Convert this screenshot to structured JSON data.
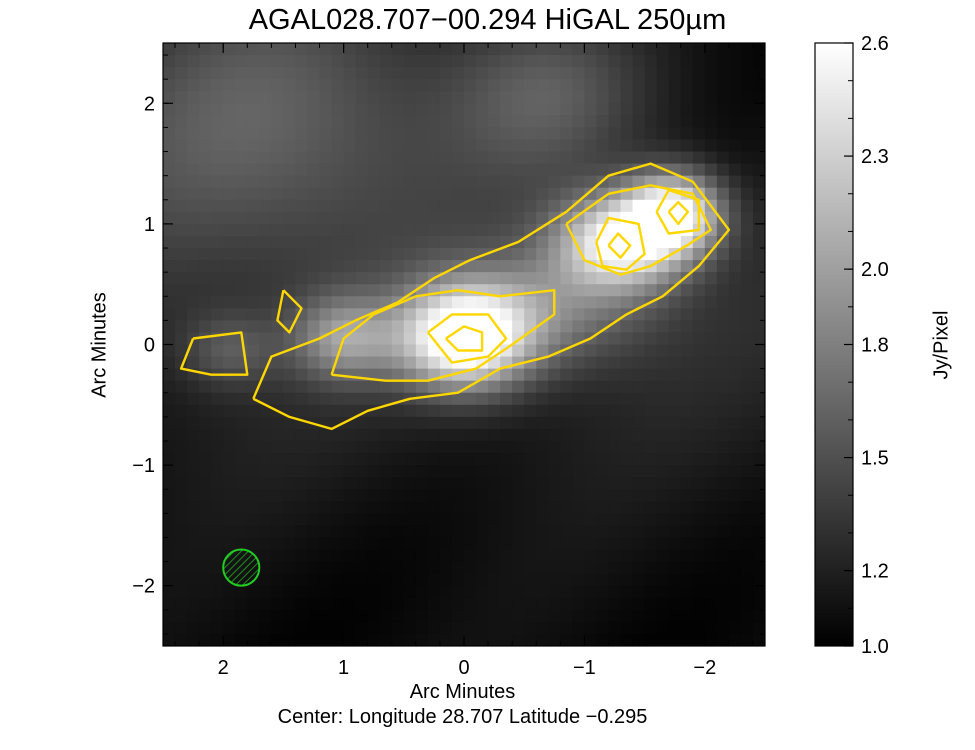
{
  "chart_data": {
    "type": "heatmap",
    "title": "AGAL028.707−00.294 HiGAL 250µm",
    "xlabel": "Arc Minutes",
    "ylabel": "Arc Minutes",
    "footer": "Center:  Longitude 28.707 Latitude −0.295",
    "x_axis": {
      "range": [
        2.5,
        -2.5
      ],
      "reversed": true,
      "ticks": [
        2,
        1,
        0,
        -1,
        -2
      ],
      "tick_labels": [
        "2",
        "1",
        "0",
        "−1",
        "−2"
      ]
    },
    "y_axis": {
      "range": [
        -2.5,
        2.5
      ],
      "ticks": [
        2,
        1,
        0,
        -1,
        -2
      ],
      "tick_labels": [
        "2",
        "1",
        "0",
        "−1",
        "−2"
      ]
    },
    "colorbar": {
      "label": "Jy/Pixel",
      "range": [
        1.0,
        2.6
      ],
      "ticks": [
        2.6,
        2.3,
        2.0,
        1.8,
        1.5,
        1.2,
        1.0
      ],
      "tick_labels": [
        "2.6",
        "2.3",
        "2.0",
        "1.8",
        "1.5",
        "1.2",
        "1.0"
      ],
      "colormap": "grayscale"
    },
    "sources": [
      {
        "x": 0.0,
        "y": 0.05,
        "peak": 2.6,
        "sigma_x": 0.38,
        "sigma_y": 0.3
      },
      {
        "x": -1.3,
        "y": 0.85,
        "peak": 2.4,
        "sigma_x": 0.38,
        "sigma_y": 0.28
      },
      {
        "x": -1.75,
        "y": 1.1,
        "peak": 2.35,
        "sigma_x": 0.28,
        "sigma_y": 0.24
      },
      {
        "x": 1.0,
        "y": 0.05,
        "peak": 1.75,
        "sigma_x": 0.3,
        "sigma_y": 0.25
      },
      {
        "x": 1.95,
        "y": -0.05,
        "peak": 1.4,
        "sigma_x": 0.28,
        "sigma_y": 0.22
      },
      {
        "x": -0.7,
        "y": 0.3,
        "peak": 1.6,
        "sigma_x": 0.6,
        "sigma_y": 0.35
      },
      {
        "x": 1.6,
        "y": 1.9,
        "peak": 1.55,
        "sigma_x": 1.2,
        "sigma_y": 0.9
      },
      {
        "x": -0.7,
        "y": 2.1,
        "peak": 1.45,
        "sigma_x": 0.6,
        "sigma_y": 0.5
      }
    ],
    "contour_color": "#ffd700",
    "contours": [
      {
        "level": "outer",
        "points": [
          [
            1.75,
            -0.45
          ],
          [
            1.6,
            -0.1
          ],
          [
            1.2,
            0.05
          ],
          [
            0.9,
            0.2
          ],
          [
            0.55,
            0.35
          ],
          [
            0.25,
            0.55
          ],
          [
            -0.05,
            0.7
          ],
          [
            -0.45,
            0.85
          ],
          [
            -0.85,
            1.1
          ],
          [
            -1.2,
            1.4
          ],
          [
            -1.55,
            1.5
          ],
          [
            -1.9,
            1.35
          ],
          [
            -2.2,
            0.95
          ],
          [
            -1.95,
            0.65
          ],
          [
            -1.65,
            0.4
          ],
          [
            -1.35,
            0.25
          ],
          [
            -1.05,
            0.05
          ],
          [
            -0.7,
            -0.1
          ],
          [
            -0.3,
            -0.2
          ],
          [
            0.05,
            -0.4
          ],
          [
            0.45,
            -0.45
          ],
          [
            0.8,
            -0.55
          ],
          [
            1.1,
            -0.7
          ],
          [
            1.45,
            -0.6
          ],
          [
            1.75,
            -0.45
          ]
        ]
      },
      {
        "level": "outer-west",
        "points": [
          [
            2.25,
            0.05
          ],
          [
            1.85,
            0.1
          ],
          [
            1.8,
            -0.25
          ],
          [
            2.1,
            -0.25
          ],
          [
            2.35,
            -0.2
          ],
          [
            2.25,
            0.05
          ]
        ]
      },
      {
        "level": "outer-northwest",
        "points": [
          [
            1.5,
            0.45
          ],
          [
            1.35,
            0.3
          ],
          [
            1.45,
            0.1
          ],
          [
            1.55,
            0.2
          ],
          [
            1.5,
            0.45
          ]
        ]
      },
      {
        "level": "mid",
        "points": [
          [
            1.1,
            -0.25
          ],
          [
            1.0,
            0.05
          ],
          [
            0.75,
            0.25
          ],
          [
            0.4,
            0.4
          ],
          [
            0.05,
            0.45
          ],
          [
            -0.3,
            0.4
          ],
          [
            -0.75,
            0.45
          ],
          [
            -0.75,
            0.25
          ],
          [
            -0.4,
            0.0
          ],
          [
            -0.1,
            -0.2
          ],
          [
            0.3,
            -0.3
          ],
          [
            0.65,
            -0.3
          ],
          [
            1.1,
            -0.25
          ]
        ]
      },
      {
        "level": "mid-northeast",
        "points": [
          [
            -0.85,
            1.0
          ],
          [
            -1.2,
            1.25
          ],
          [
            -1.55,
            1.32
          ],
          [
            -1.9,
            1.25
          ],
          [
            -2.05,
            0.95
          ],
          [
            -1.85,
            0.82
          ],
          [
            -1.55,
            0.65
          ],
          [
            -1.3,
            0.58
          ],
          [
            -1.0,
            0.7
          ],
          [
            -0.85,
            1.0
          ]
        ]
      },
      {
        "level": "high",
        "points": [
          [
            0.3,
            0.1
          ],
          [
            0.1,
            0.25
          ],
          [
            -0.2,
            0.25
          ],
          [
            -0.35,
            0.05
          ],
          [
            -0.2,
            -0.1
          ],
          [
            0.1,
            -0.15
          ],
          [
            0.3,
            0.1
          ]
        ]
      },
      {
        "level": "high-northeast-1",
        "points": [
          [
            -1.1,
            0.85
          ],
          [
            -1.2,
            1.05
          ],
          [
            -1.45,
            1.0
          ],
          [
            -1.5,
            0.75
          ],
          [
            -1.35,
            0.62
          ],
          [
            -1.15,
            0.65
          ],
          [
            -1.1,
            0.85
          ]
        ]
      },
      {
        "level": "high-northeast-2",
        "points": [
          [
            -1.6,
            1.1
          ],
          [
            -1.7,
            1.28
          ],
          [
            -1.95,
            1.2
          ],
          [
            -1.95,
            0.95
          ],
          [
            -1.7,
            0.92
          ],
          [
            -1.6,
            1.1
          ]
        ]
      },
      {
        "level": "peak",
        "points": [
          [
            0.15,
            0.05
          ],
          [
            0.0,
            0.15
          ],
          [
            -0.15,
            0.1
          ],
          [
            -0.15,
            -0.05
          ],
          [
            0.05,
            -0.05
          ],
          [
            0.15,
            0.05
          ]
        ]
      },
      {
        "level": "peak-northeast",
        "points": [
          [
            -1.2,
            0.82
          ],
          [
            -1.28,
            0.92
          ],
          [
            -1.38,
            0.82
          ],
          [
            -1.3,
            0.72
          ],
          [
            -1.2,
            0.82
          ]
        ]
      },
      {
        "level": "peak-northeast-2",
        "points": [
          [
            -1.7,
            1.1
          ],
          [
            -1.78,
            1.18
          ],
          [
            -1.86,
            1.1
          ],
          [
            -1.78,
            1.0
          ],
          [
            -1.7,
            1.1
          ]
        ]
      }
    ],
    "beam": {
      "x": 1.85,
      "y": -1.85,
      "radius_arcmin": 0.15,
      "color": "#22cc22",
      "style": "hatched circle"
    }
  }
}
